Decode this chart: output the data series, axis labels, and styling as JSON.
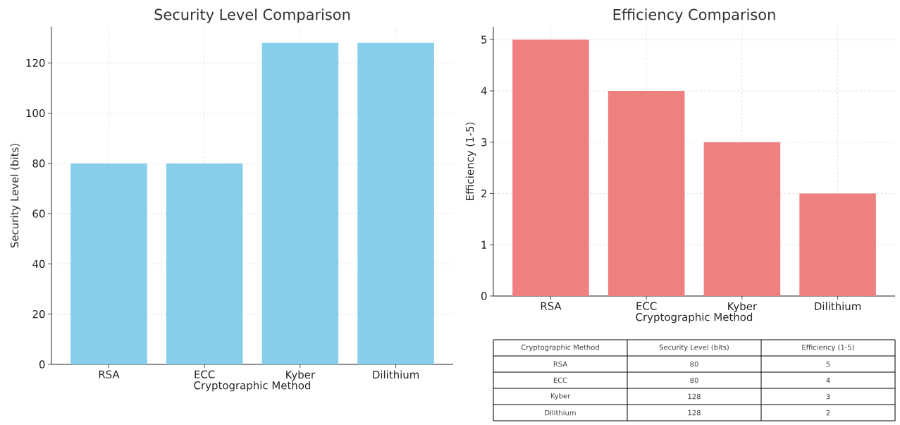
{
  "chart_data": [
    {
      "type": "bar",
      "title": "Security Level Comparison",
      "xlabel": "Cryptographic Method",
      "ylabel": "Security Level (bits)",
      "categories": [
        "RSA",
        "ECC",
        "Kyber",
        "Dilithium"
      ],
      "values": [
        80,
        80,
        128,
        128
      ],
      "color": "#87ceeb",
      "ylim": [
        0,
        134.4
      ],
      "yticks": [
        0,
        20,
        40,
        60,
        80,
        100,
        120
      ],
      "grid": true
    },
    {
      "type": "bar",
      "title": "Efficiency Comparison",
      "xlabel": "Cryptographic Method",
      "ylabel": "Efficiency (1-5)",
      "categories": [
        "RSA",
        "ECC",
        "Kyber",
        "Dilithium"
      ],
      "values": [
        5,
        4,
        3,
        2
      ],
      "color": "#f08080",
      "ylim": [
        0,
        5.25
      ],
      "yticks": [
        0,
        1,
        2,
        3,
        4,
        5
      ],
      "grid": true
    },
    {
      "type": "other",
      "xlabel": "Cryptographic Method",
      "categories": [
        "RSA",
        "ECC",
        "Kyber",
        "Dilithium"
      ],
      "series": [
        {
          "name": "Security Level (bits)",
          "values": [
            80,
            80,
            128,
            128
          ]
        },
        {
          "name": "Efficiency (1-5)",
          "values": [
            5,
            4,
            3,
            2
          ]
        }
      ],
      "data_labels": true
    }
  ]
}
